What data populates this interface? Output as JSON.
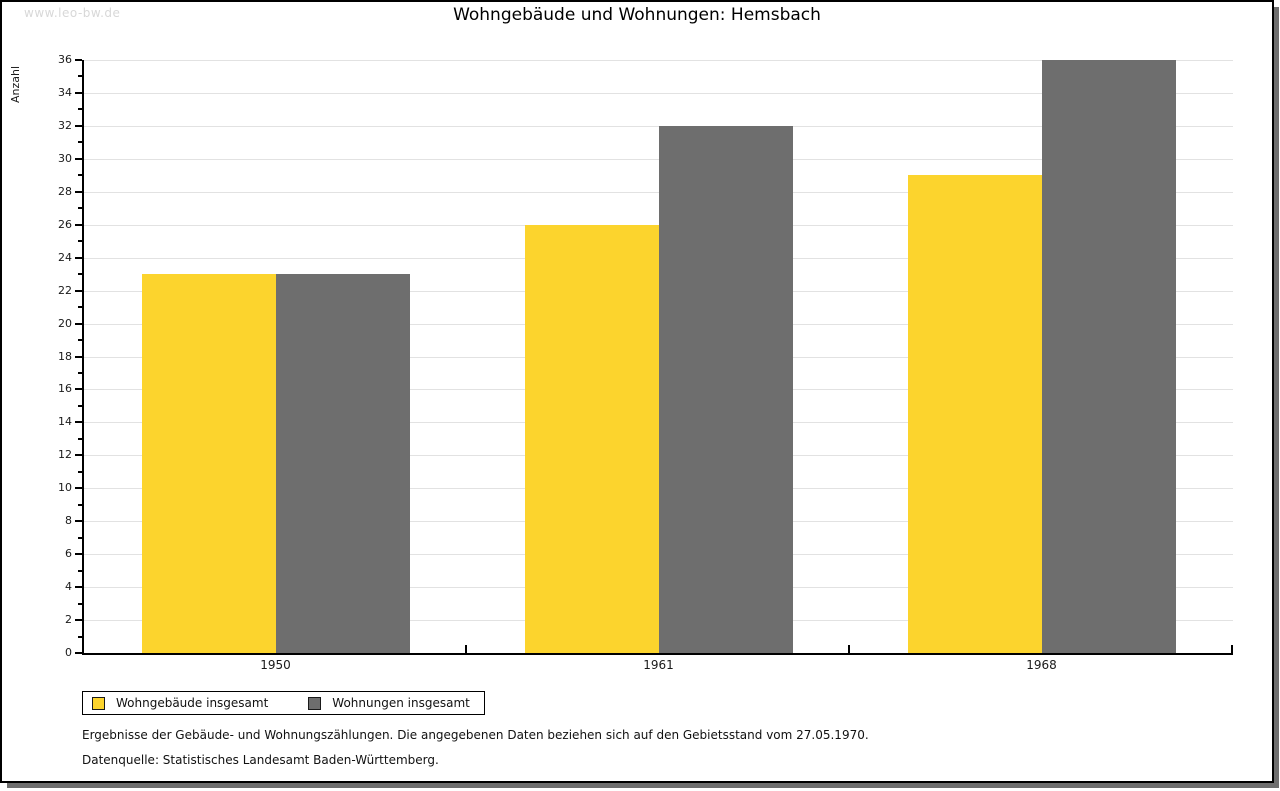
{
  "watermark": "www.leo-bw.de",
  "title": "Wohngebäude und Wohnungen: Hemsbach",
  "footnotes": [
    "Ergebnisse der Gebäude- und Wohnungszählungen. Die angegebenen Daten beziehen sich auf den Gebietsstand vom 27.05.1970.",
    "Datenquelle: Statistisches Landesamt Baden-Württemberg."
  ],
  "colors": {
    "bar_yellow": "#fcd42d",
    "bar_gray": "#6e6e6e",
    "gridline": "#e2e2e2",
    "axis": "#000000",
    "shadow": "#6e6e6e"
  },
  "chart_data": {
    "type": "bar",
    "title": "Wohngebäude und Wohnungen: Hemsbach",
    "categories": [
      "1950",
      "1961",
      "1968"
    ],
    "series": [
      {
        "name": "Wohngebäude insgesamt",
        "color": "#fcd42d",
        "values": [
          23,
          26,
          29
        ]
      },
      {
        "name": "Wohnungen insgesamt",
        "color": "#6e6e6e",
        "values": [
          23,
          32,
          36
        ]
      }
    ],
    "xlabel": "",
    "ylabel": "Anzahl",
    "ylim": [
      0,
      36
    ],
    "ytick_major_step": 2,
    "ytick_minor_step": 1,
    "grid": true,
    "legend_position": "bottom-left"
  }
}
